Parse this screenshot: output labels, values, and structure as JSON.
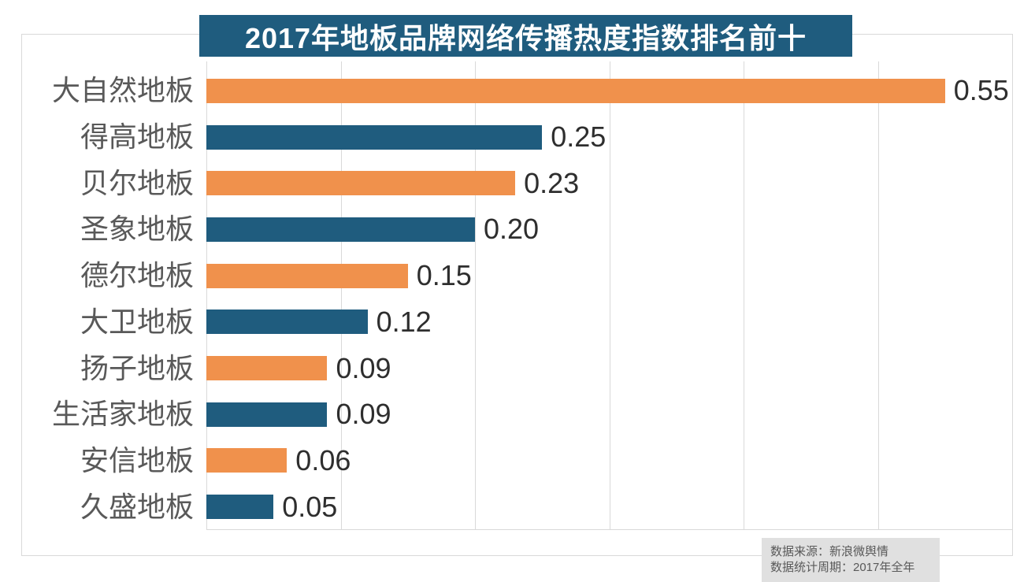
{
  "chart_data": {
    "type": "bar",
    "orientation": "horizontal",
    "title": "2017年地板品牌网络传播热度指数排名前十",
    "categories": [
      "大自然地板",
      "得高地板",
      "贝尔地板",
      "圣象地板",
      "德尔地板",
      "大卫地板",
      "扬子地板",
      "生活家地板",
      "安信地板",
      "久盛地板"
    ],
    "values": [
      0.55,
      0.25,
      0.23,
      0.2,
      0.15,
      0.12,
      0.09,
      0.09,
      0.06,
      0.05
    ],
    "value_decimals": 2,
    "xlabel": "",
    "ylabel": "",
    "xlim": [
      0,
      0.6
    ],
    "grid_step": 0.1,
    "grid": true,
    "legend": false,
    "bar_colors": [
      "#F0914C",
      "#1F5C7E"
    ],
    "colors": {
      "banner_bg": "#1F5C7E",
      "banner_text": "#FFFFFF",
      "gridline": "#D9D9D9",
      "frame_border": "#D9D9D9",
      "category_label": "#595959",
      "value_label": "#2E2E2E",
      "note_bg": "#E0E0E0",
      "note_text": "#595959"
    }
  },
  "footer": {
    "source": "数据来源：新浪微舆情",
    "period": "数据统计周期：2017年全年"
  }
}
